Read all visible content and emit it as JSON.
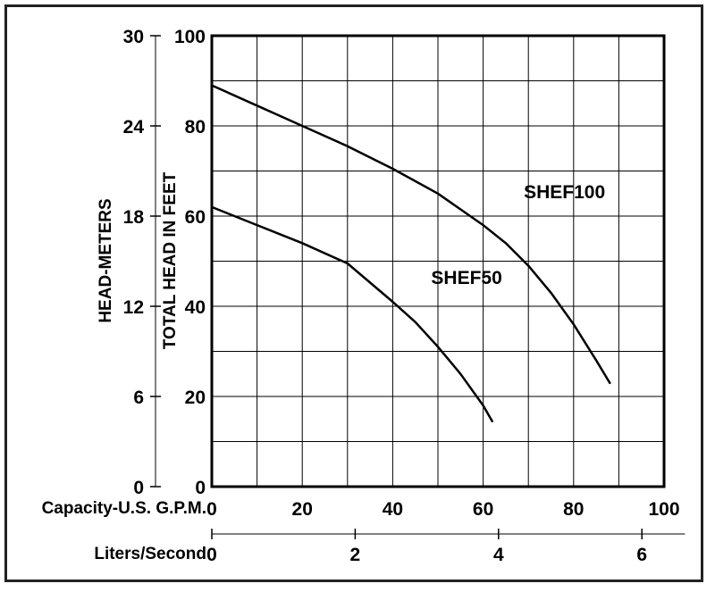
{
  "chart_data": {
    "type": "line",
    "xlabel": "Capacity-U.S. G.P.M.",
    "x2label": "Liters/Second",
    "ylabel": "TOTAL HEAD IN FEET",
    "y2label": "HEAD-METERS",
    "xlim": [
      0,
      100
    ],
    "ylim": [
      0,
      100
    ],
    "grid": true,
    "x_ticks": [
      "0",
      "20",
      "40",
      "60",
      "80",
      "100"
    ],
    "y_ticks": [
      "0",
      "20",
      "40",
      "60",
      "80",
      "100"
    ],
    "x2_ticks": [
      "0",
      "2",
      "4",
      "6"
    ],
    "y2_ticks": [
      "0",
      "6",
      "12",
      "18",
      "24",
      "30"
    ],
    "series": [
      {
        "name": "SHEF100",
        "label_at": [
          69,
          64
        ],
        "x": [
          0,
          10,
          20,
          30,
          40,
          50,
          60,
          65,
          70,
          75,
          80,
          85,
          88
        ],
        "y": [
          89,
          84.5,
          80,
          75.5,
          70.5,
          65,
          58,
          54,
          49,
          43,
          36,
          28,
          23
        ]
      },
      {
        "name": "SHEF50",
        "label_at": [
          48.5,
          45
        ],
        "x": [
          0,
          10,
          20,
          30,
          40,
          45,
          50,
          55,
          60,
          62
        ],
        "y": [
          62,
          58,
          54,
          49.5,
          41,
          36.5,
          31,
          25,
          18,
          14.5
        ]
      }
    ]
  }
}
